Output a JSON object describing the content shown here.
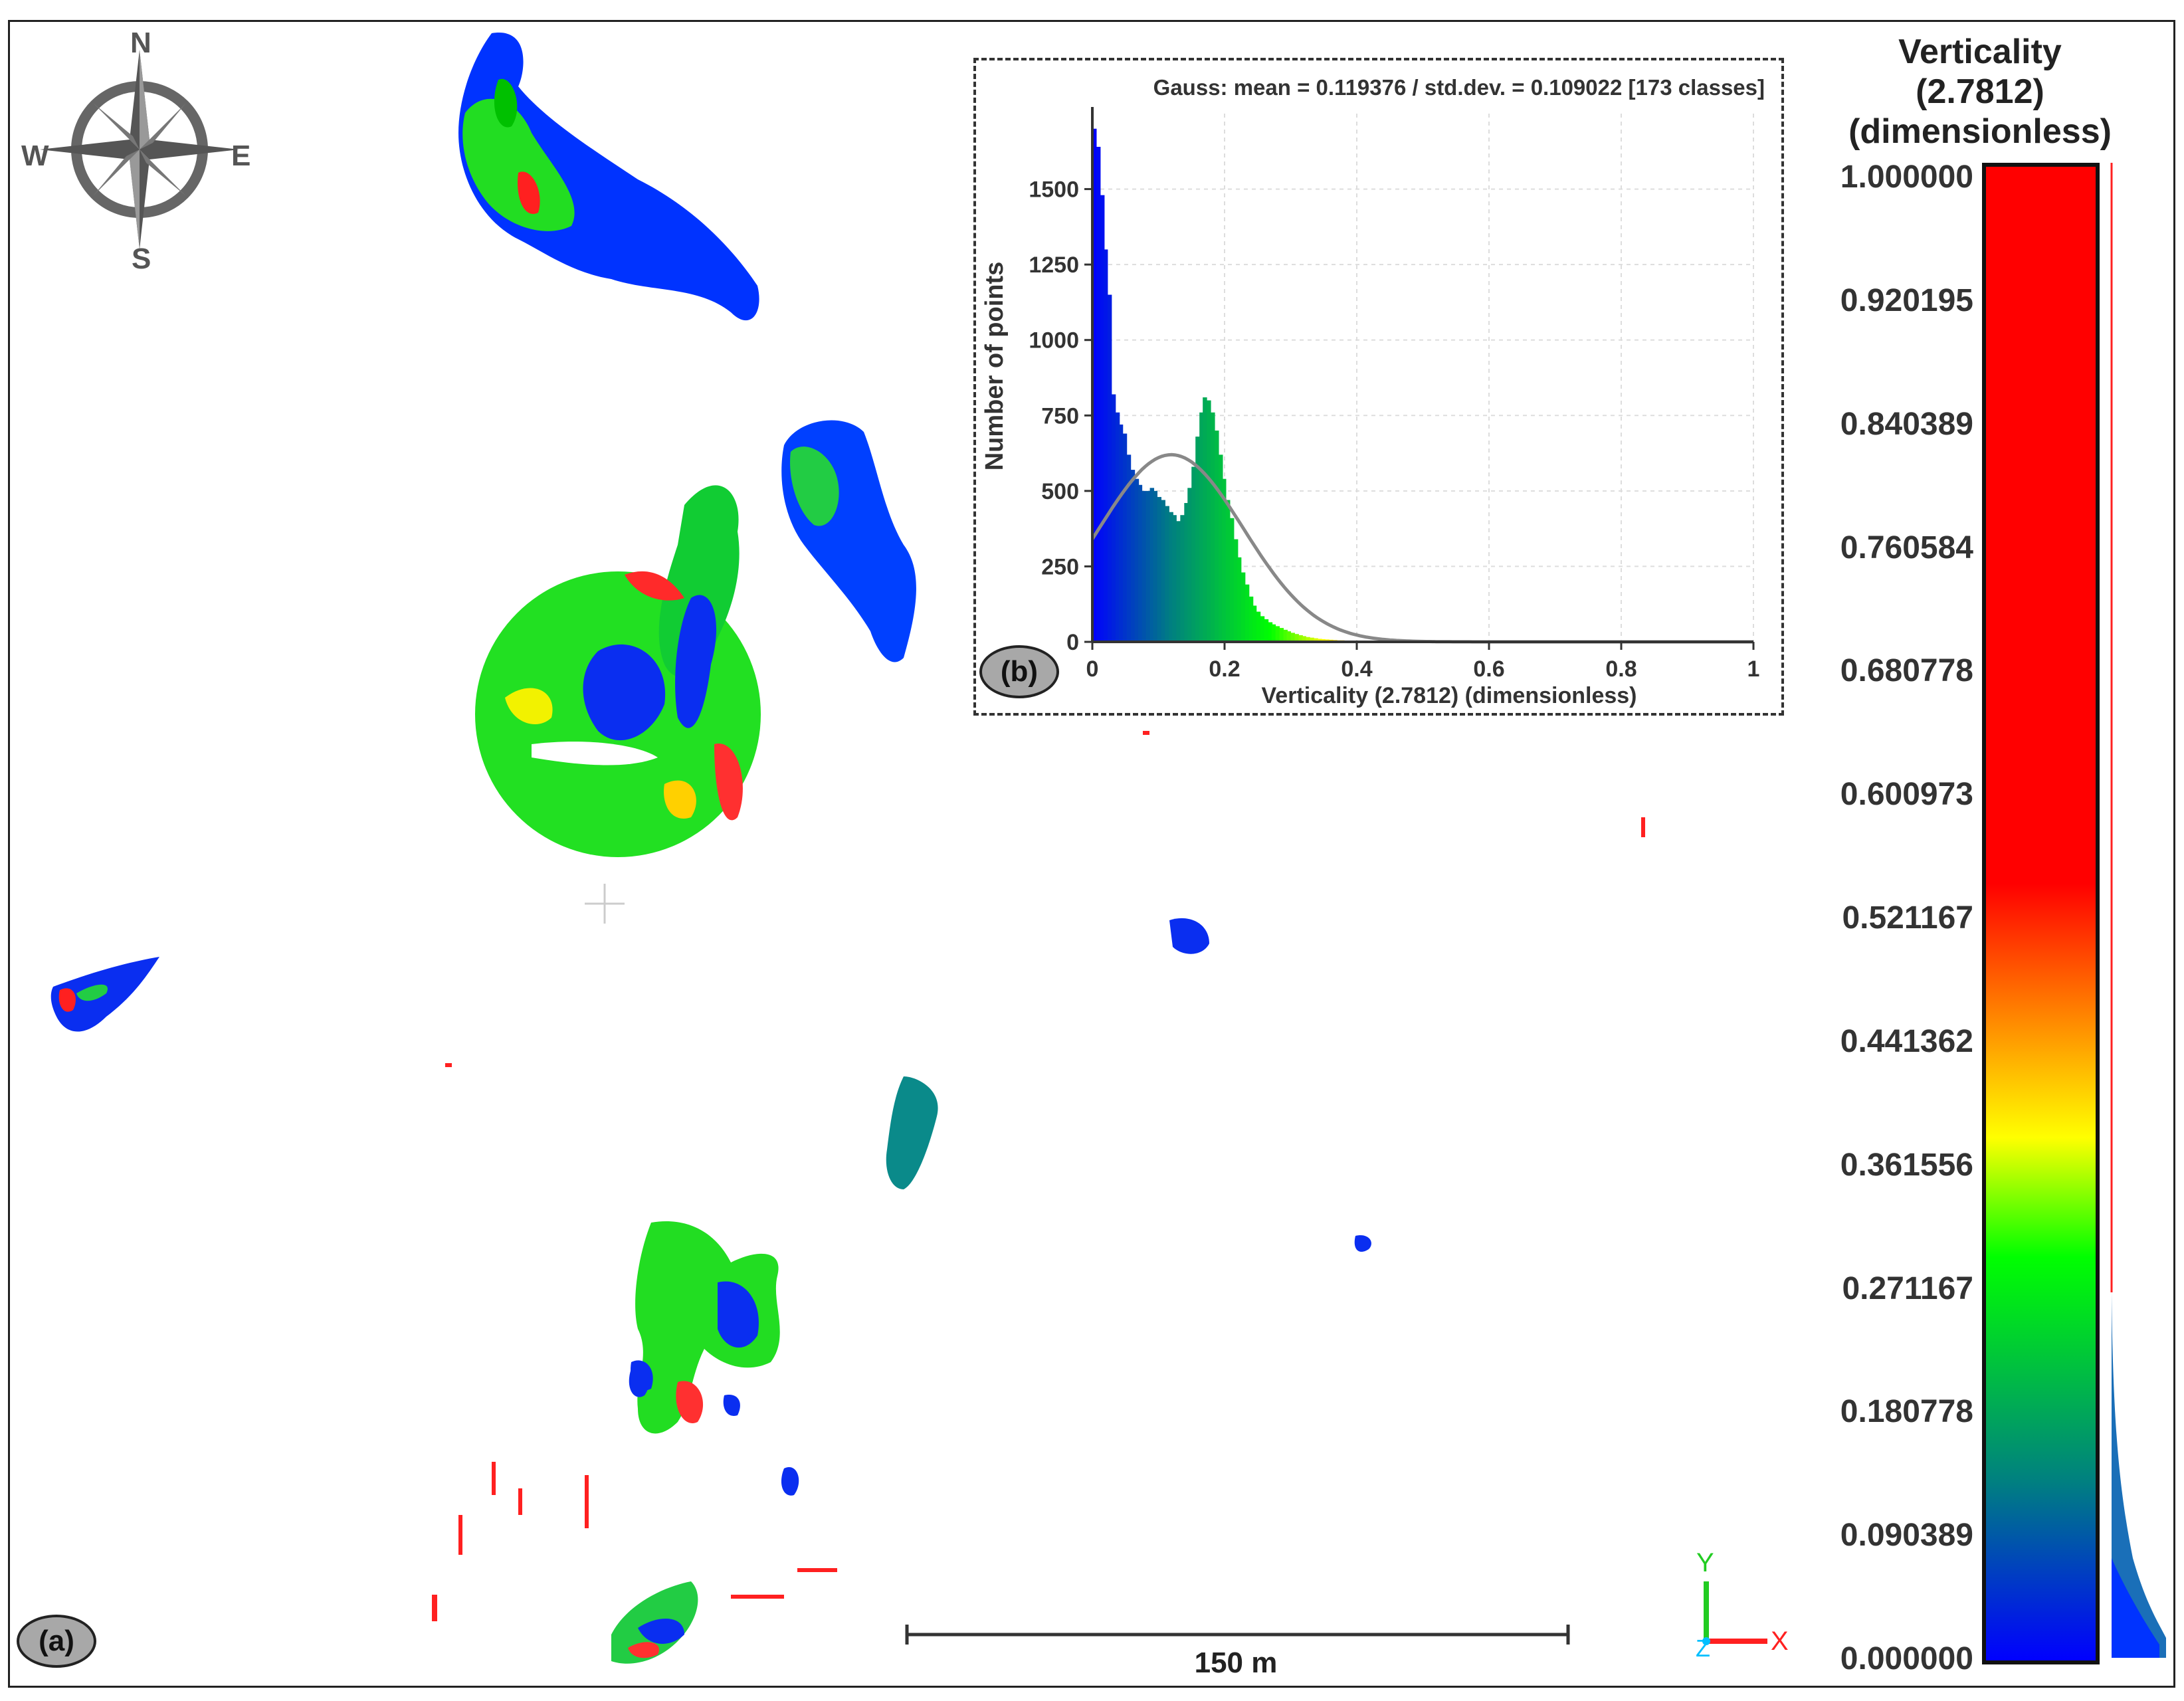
{
  "panels": {
    "a": "(a)",
    "b": "(b)"
  },
  "compass": {
    "north": "N",
    "south": "S",
    "east": "E",
    "west": "W"
  },
  "scalebar": {
    "label": "150 m"
  },
  "axes_gizmo": {
    "x": "X",
    "y": "Y",
    "z": "Z"
  },
  "colorbar": {
    "title_line1": "Verticality",
    "title_line2": "(2.7812)",
    "title_line3": "(dimensionless)",
    "ticks": [
      "1.000000",
      "0.920195",
      "0.840389",
      "0.760584",
      "0.680778",
      "0.600973",
      "0.521167",
      "0.441362",
      "0.361556",
      "0.271167",
      "0.180778",
      "0.090389",
      "0.000000"
    ],
    "colors": [
      "#0000ff",
      "#008080",
      "#00ff00",
      "#ffff00",
      "#ff0000"
    ]
  },
  "chart_data": {
    "type": "bar",
    "title": "Gauss: mean = 0.119376 / std.dev. = 0.109022 [173 classes]",
    "xlabel": "Verticality (2.7812) (dimensionless)",
    "ylabel": "Number of points",
    "xlim": [
      0,
      1
    ],
    "ylim": [
      0,
      1750
    ],
    "xticks": [
      "0",
      "0.2",
      "0.4",
      "0.6",
      "0.8",
      "1"
    ],
    "yticks": [
      "0",
      "250",
      "500",
      "750",
      "1000",
      "1250",
      "1500"
    ],
    "grid": true,
    "bins": 173,
    "x": [
      0.003,
      0.009,
      0.015,
      0.02,
      0.026,
      0.032,
      0.038,
      0.043,
      0.049,
      0.055,
      0.061,
      0.067,
      0.072,
      0.078,
      0.084,
      0.09,
      0.095,
      0.101,
      0.107,
      0.113,
      0.119,
      0.124,
      0.13,
      0.136,
      0.142,
      0.147,
      0.153,
      0.159,
      0.165,
      0.17,
      0.176,
      0.182,
      0.188,
      0.194,
      0.199,
      0.205,
      0.211,
      0.217,
      0.222,
      0.228,
      0.234,
      0.24,
      0.245,
      0.251,
      0.257,
      0.263,
      0.269,
      0.274,
      0.28,
      0.286,
      0.292,
      0.297,
      0.303,
      0.309,
      0.315,
      0.32,
      0.326,
      0.332,
      0.338,
      0.344,
      0.349,
      0.355,
      0.361,
      0.367,
      0.372,
      0.378,
      0.384,
      0.39,
      0.395,
      0.401,
      0.407,
      0.413,
      0.419,
      0.424,
      0.43,
      0.436,
      0.442,
      0.447,
      0.453,
      0.459,
      0.465,
      0.47,
      0.476,
      0.482,
      0.488,
      0.494,
      0.499
    ],
    "values": [
      1700,
      1640,
      1480,
      1300,
      1150,
      820,
      760,
      720,
      690,
      620,
      570,
      540,
      520,
      500,
      500,
      510,
      500,
      480,
      470,
      450,
      430,
      420,
      400,
      420,
      460,
      510,
      580,
      680,
      760,
      810,
      800,
      760,
      700,
      620,
      540,
      470,
      410,
      340,
      280,
      230,
      190,
      150,
      120,
      100,
      85,
      75,
      65,
      58,
      52,
      46,
      40,
      35,
      30,
      26,
      22,
      19,
      16,
      14,
      12,
      10,
      9,
      8,
      7,
      6,
      5,
      5,
      4,
      4,
      3,
      3,
      3,
      2,
      2,
      2,
      2,
      2,
      2,
      1,
      1,
      1,
      1,
      1,
      1,
      1,
      1,
      1,
      1
    ],
    "gauss": {
      "mean": 0.119376,
      "std": 0.109022,
      "peak": 620,
      "color": "#888888"
    }
  }
}
